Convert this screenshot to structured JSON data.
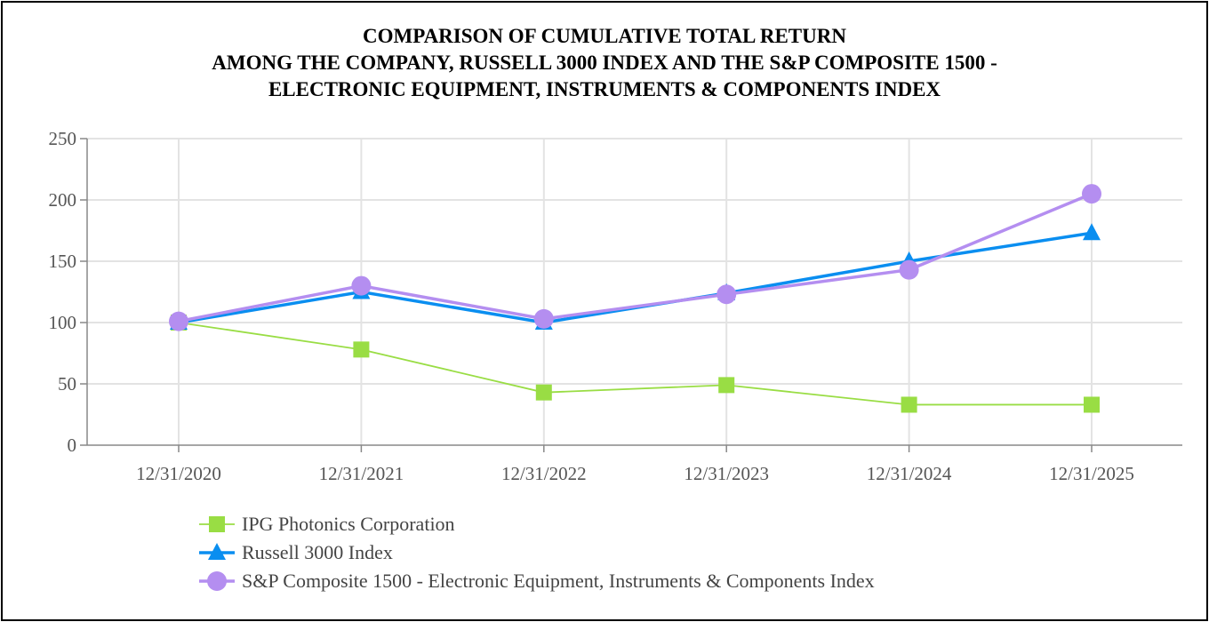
{
  "chart_data": {
    "type": "line",
    "title": [
      "COMPARISON OF CUMULATIVE TOTAL RETURN",
      "AMONG THE COMPANY, RUSSELL 3000 INDEX AND THE S&P COMPOSITE 1500 -",
      "ELECTRONIC EQUIPMENT, INSTRUMENTS & COMPONENTS INDEX"
    ],
    "categories": [
      "12/31/2020",
      "12/31/2021",
      "12/31/2022",
      "12/31/2023",
      "12/31/2024",
      "12/31/2025"
    ],
    "ylim": [
      0,
      250
    ],
    "yticks": [
      0,
      50,
      100,
      150,
      200,
      250
    ],
    "grid": true,
    "legend_position": "bottom-left",
    "series": [
      {
        "name": "IPG Photonics Corporation",
        "marker": "square",
        "color": "#99dd44",
        "values": [
          100,
          78,
          43,
          49,
          33,
          33
        ]
      },
      {
        "name": "Russell 3000 Index",
        "marker": "triangle",
        "color": "#0a8ef0",
        "values": [
          100,
          125,
          100,
          124,
          150,
          173
        ]
      },
      {
        "name": "S&P Composite 1500 - Electronic Equipment, Instruments & Components Index",
        "marker": "circle",
        "color": "#b48ef0",
        "values": [
          101,
          130,
          103,
          123,
          143,
          205
        ]
      }
    ]
  }
}
